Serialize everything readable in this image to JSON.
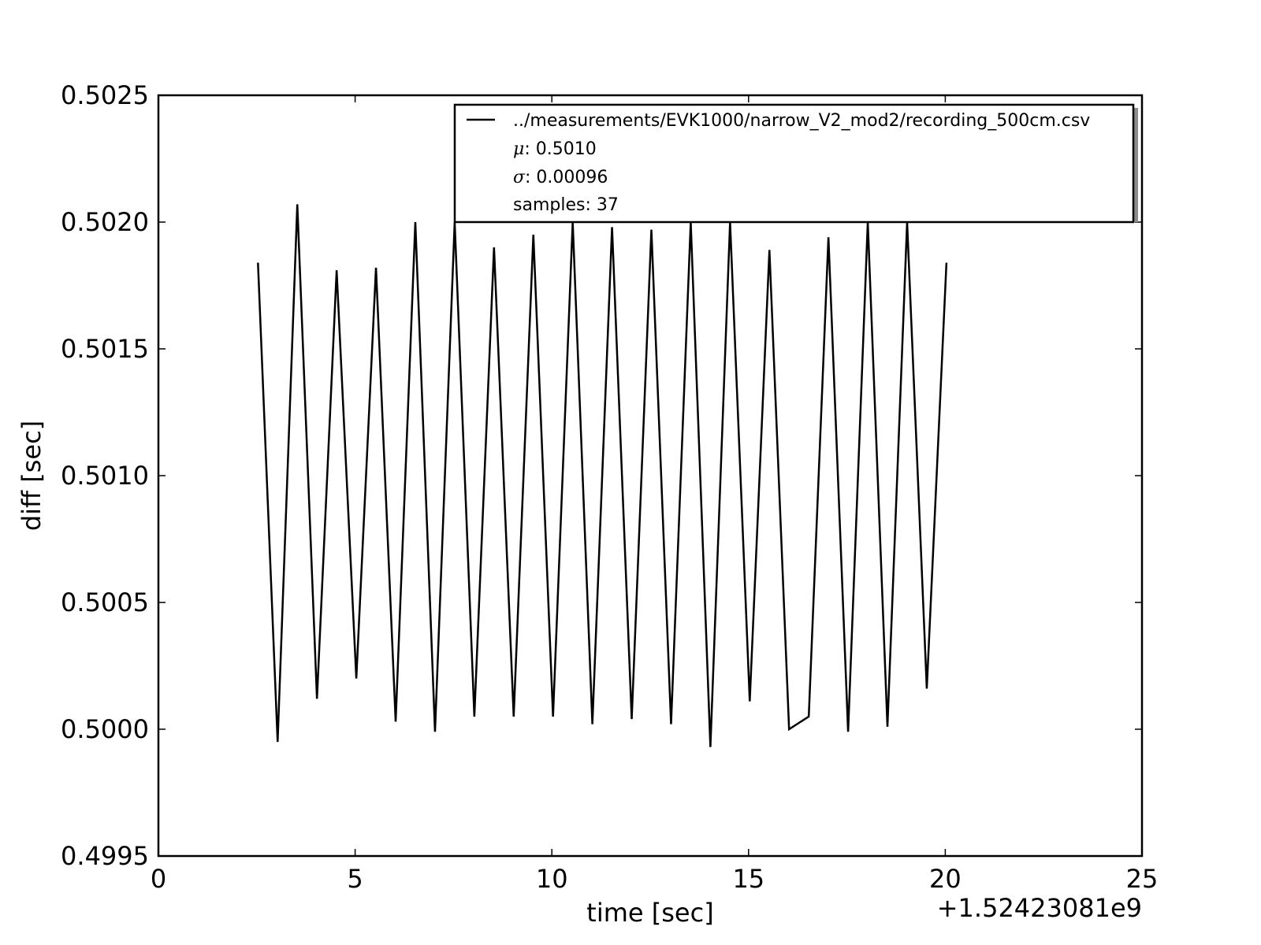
{
  "chart_data": {
    "type": "line",
    "xlabel": "time [sec]",
    "ylabel": "diff [sec]",
    "x_offset_label": "+1.52423081e9",
    "xlim": [
      0,
      25
    ],
    "ylim": [
      0.4995,
      0.5025
    ],
    "xticks": [
      0,
      5,
      10,
      15,
      20,
      25
    ],
    "xtick_labels": [
      "0",
      "5",
      "10",
      "15",
      "20",
      "25"
    ],
    "yticks": [
      0.4995,
      0.5,
      0.5005,
      0.501,
      0.5015,
      0.502,
      0.5025
    ],
    "ytick_labels": [
      "0.4995",
      "0.5000",
      "0.5005",
      "0.5010",
      "0.5015",
      "0.5020",
      "0.5025"
    ],
    "grid": false,
    "legend_position": "top-right",
    "line_color": "#000000",
    "series": [
      {
        "name": "../measurements/EVK1000/narrow_V2_mod2/recording_500cm.csv",
        "x": [
          2.53,
          3.03,
          3.53,
          4.03,
          4.53,
          5.03,
          5.53,
          6.03,
          6.53,
          7.03,
          7.53,
          8.03,
          8.53,
          9.03,
          9.53,
          10.03,
          10.53,
          11.03,
          11.53,
          12.03,
          12.53,
          13.03,
          13.53,
          14.03,
          14.53,
          15.03,
          15.53,
          16.03,
          16.53,
          17.03,
          17.53,
          18.03,
          18.53,
          19.03,
          19.53,
          20.03
        ],
        "y": [
          0.50184,
          0.49995,
          0.50207,
          0.50012,
          0.50181,
          0.5002,
          0.50182,
          0.50003,
          0.502,
          0.49999,
          0.502,
          0.50005,
          0.5019,
          0.50005,
          0.50195,
          0.50005,
          0.502,
          0.50002,
          0.50198,
          0.50004,
          0.50197,
          0.50002,
          0.502,
          0.49993,
          0.502,
          0.50011,
          0.50189,
          0.5,
          0.50005,
          0.50194,
          0.49999,
          0.502,
          0.50001,
          0.502,
          0.50016,
          0.50184
        ]
      }
    ],
    "legend": {
      "mu_symbol": "μ",
      "mu_value": ": 0.5010",
      "sigma_symbol": "σ",
      "sigma_value": ":  0.00096",
      "samples": "samples: 37"
    }
  }
}
